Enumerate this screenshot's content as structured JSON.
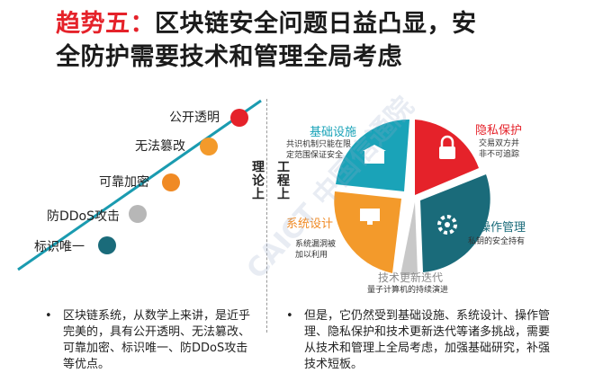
{
  "title": {
    "accent": "趋势五：",
    "line1_rest": "区块链安全问题日益凸显，安",
    "line2": "全防护需要技术和管理全局考虑"
  },
  "timeline": {
    "items": [
      {
        "label": "公开透明",
        "color": "#e5222a"
      },
      {
        "label": "无法篡改",
        "color": "#f39a2b"
      },
      {
        "label": "可靠加密",
        "color": "#f08a24"
      },
      {
        "label": "防DDoS攻击",
        "color": "#b7b7b7"
      },
      {
        "label": "标识唯一",
        "color": "#1a6b7a"
      }
    ],
    "line_color": "#1a9bb0"
  },
  "axis_labels": {
    "theory": "理论上",
    "engineering": "工程上"
  },
  "pie": {
    "segments": [
      {
        "title": "隐私保护",
        "desc": "交易双方并\n非不可追踪",
        "color": "#e5222a"
      },
      {
        "title": "操作管理",
        "desc": "私钥的安全持有",
        "color": "#1a6b7a"
      },
      {
        "title": "技术更新迭代",
        "desc": "量子计算机的持续演进",
        "color": "#c8c8c8"
      },
      {
        "title": "系统设计",
        "desc": "系统漏洞被\n加以利用",
        "color": "#f39a2b"
      },
      {
        "title": "基础设施",
        "desc": "共识机制只能在限\n定范围保证安全",
        "color": "#1aa3b8"
      }
    ]
  },
  "watermark": "CAICT 中国信通院",
  "bullets": {
    "left": "区块链系统，从数学上来讲，是近乎完美的，具有公开透明、无法篡改、可靠加密、标识唯一、防DDoS攻击等优点。",
    "right": "但是，它仍然受到基础设施、系统设计、操作管理、隐私保护和技术更新迭代等诸多挑战，需要从技术和管理上全局考虑，加强基础研究，补强技术短板。",
    "marker": "•"
  }
}
